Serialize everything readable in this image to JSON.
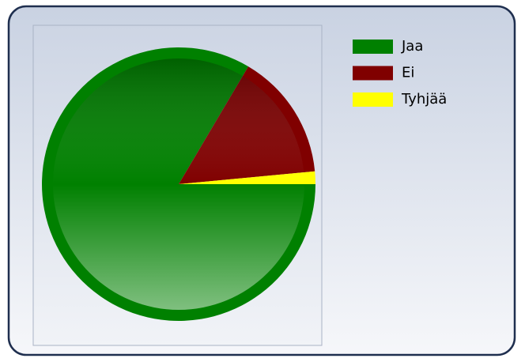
{
  "chart_data": {
    "type": "pie",
    "categories": [
      "Jaa",
      "Ei",
      "Tyhjää"
    ],
    "values": [
      83.5,
      15,
      1.5
    ],
    "colors": [
      "#008000",
      "#800000",
      "#ffff00"
    ],
    "legend": "top-right"
  }
}
